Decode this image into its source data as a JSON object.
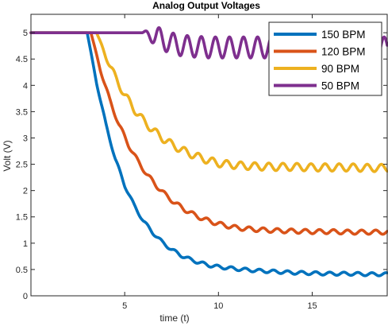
{
  "chart_data": {
    "type": "line",
    "title": "Analog Output Voltages",
    "xlabel": "time (t)",
    "ylabel": "Volt (V)",
    "xlim": [
      0,
      19
    ],
    "ylim": [
      0,
      5.35
    ],
    "xticks": [
      5,
      10,
      15
    ],
    "yticks": [
      0,
      0.5,
      1,
      1.5,
      2,
      2.5,
      3,
      3.5,
      4,
      4.5,
      5
    ],
    "grid": false,
    "legend_position": "top-right",
    "series": [
      {
        "name": "150 BPM",
        "color": "#0072BD",
        "x": [
          0,
          3,
          3.5,
          4,
          4.5,
          5,
          5.5,
          6,
          6.5,
          7,
          7.5,
          8,
          8.5,
          9,
          9.5,
          10,
          11,
          12,
          13,
          14,
          15,
          16,
          17,
          18,
          19
        ],
        "y": [
          5,
          5,
          4.05,
          3.25,
          2.6,
          2.1,
          1.72,
          1.42,
          1.2,
          1.02,
          0.88,
          0.77,
          0.69,
          0.63,
          0.58,
          0.55,
          0.51,
          0.48,
          0.46,
          0.44,
          0.43,
          0.42,
          0.42,
          0.41,
          0.41
        ],
        "ripple_amplitude": 0.03
      },
      {
        "name": "120 BPM",
        "color": "#D95319",
        "x": [
          0,
          3.2,
          3.7,
          4.2,
          4.7,
          5.2,
          5.7,
          6.2,
          6.7,
          7.2,
          7.7,
          8.2,
          8.7,
          9.2,
          9.7,
          10.2,
          11,
          12,
          13,
          14,
          15,
          16,
          17,
          18,
          19
        ],
        "y": [
          5,
          5,
          4.3,
          3.72,
          3.25,
          2.87,
          2.56,
          2.3,
          2.09,
          1.91,
          1.76,
          1.64,
          1.54,
          1.46,
          1.4,
          1.35,
          1.29,
          1.26,
          1.24,
          1.23,
          1.22,
          1.22,
          1.21,
          1.21,
          1.21
        ],
        "ripple_amplitude": 0.04
      },
      {
        "name": "90 BPM",
        "color": "#EDB120",
        "x": [
          0,
          3.5,
          4,
          4.5,
          5,
          5.5,
          6,
          6.5,
          7,
          7.5,
          8,
          8.5,
          9,
          9.5,
          10,
          11,
          12,
          13,
          14,
          15,
          16,
          17,
          18,
          19
        ],
        "y": [
          5,
          5,
          4.55,
          4.15,
          3.82,
          3.55,
          3.33,
          3.15,
          3.0,
          2.88,
          2.78,
          2.7,
          2.63,
          2.57,
          2.52,
          2.48,
          2.46,
          2.45,
          2.45,
          2.44,
          2.44,
          2.44,
          2.43,
          2.43
        ],
        "ripple_amplitude": 0.07
      },
      {
        "name": "50 BPM",
        "color": "#7E2F8E",
        "x": [
          0,
          5.9,
          6.5,
          7,
          7.5,
          8,
          8.5,
          9,
          9.5,
          10,
          11,
          12,
          13,
          14,
          15,
          16,
          17,
          18,
          19
        ],
        "y": [
          5,
          5,
          4.95,
          4.87,
          4.8,
          4.76,
          4.74,
          4.73,
          4.72,
          4.72,
          4.72,
          4.72,
          4.72,
          4.72,
          4.72,
          4.72,
          4.72,
          4.72,
          4.72
        ],
        "ripple_amplitude": 0.2
      }
    ]
  }
}
